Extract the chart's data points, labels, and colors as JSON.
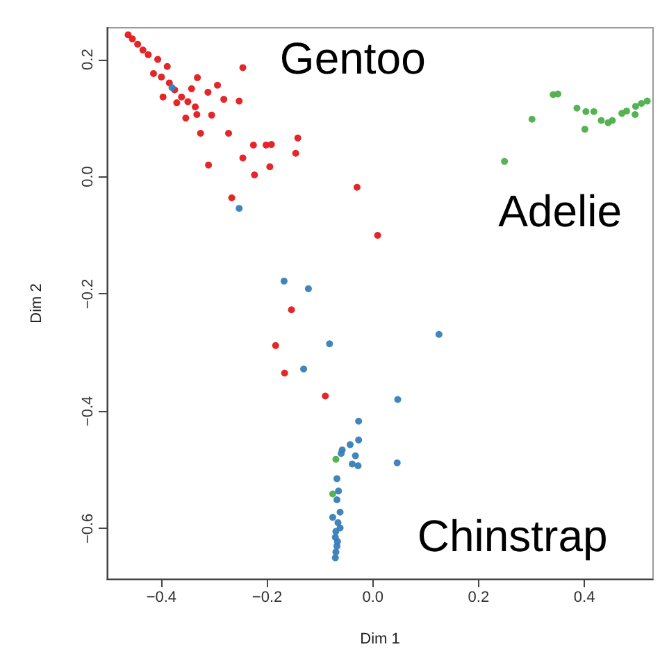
{
  "chart_data": {
    "type": "scatter",
    "xlabel": "Dim 1",
    "ylabel": "Dim 2",
    "xlim": [
      -0.503,
      0.53
    ],
    "ylim": [
      -0.686,
      0.254
    ],
    "xticks": [
      {
        "value": -0.4,
        "label": "−0.4"
      },
      {
        "value": -0.2,
        "label": "−0.2"
      },
      {
        "value": 0,
        "label": "0.0"
      },
      {
        "value": 0.2,
        "label": "0.2"
      },
      {
        "value": 0.4,
        "label": "0.4"
      }
    ],
    "yticks": [
      {
        "value": -0.6,
        "label": "−0.6"
      },
      {
        "value": -0.4,
        "label": "−0.4"
      },
      {
        "value": -0.2,
        "label": "−0.2"
      },
      {
        "value": 0,
        "label": "0.0"
      },
      {
        "value": 0.2,
        "label": "0.2"
      }
    ],
    "grid": false,
    "legend": false,
    "marker": "circle",
    "series": [
      {
        "name": "Gentoo",
        "color": "#e41a1c",
        "x": [
          -0.463,
          -0.455,
          -0.445,
          -0.435,
          -0.425,
          -0.407,
          -0.389,
          -0.415,
          -0.4,
          -0.385,
          -0.375,
          -0.362,
          -0.35,
          -0.336,
          -0.246,
          -0.332,
          -0.294,
          -0.343,
          -0.312,
          -0.397,
          -0.282,
          -0.253,
          -0.371,
          -0.333,
          -0.305,
          -0.354,
          -0.326,
          -0.273,
          -0.142,
          -0.226,
          -0.202,
          -0.192,
          -0.146,
          -0.246,
          -0.311,
          -0.195,
          -0.224,
          -0.267,
          -0.03,
          0.009,
          -0.154,
          -0.184,
          -0.167,
          -0.09
        ],
        "values": [
          0.242,
          0.235,
          0.226,
          0.216,
          0.208,
          0.2,
          0.188,
          0.176,
          0.17,
          0.16,
          0.148,
          0.136,
          0.128,
          0.119,
          0.186,
          0.169,
          0.156,
          0.15,
          0.144,
          0.136,
          0.132,
          0.129,
          0.126,
          0.106,
          0.105,
          0.1,
          0.074,
          0.074,
          0.066,
          0.054,
          0.054,
          0.055,
          0.04,
          0.032,
          0.02,
          0.017,
          0.003,
          -0.036,
          -0.018,
          -0.1,
          -0.227,
          -0.288,
          -0.335,
          -0.374
        ]
      },
      {
        "name": "Adelie",
        "color": "#4daf4a",
        "x": [
          0.249,
          0.301,
          0.341,
          0.35,
          0.386,
          0.403,
          0.418,
          0.401,
          0.432,
          0.445,
          0.453,
          0.471,
          0.48,
          0.496,
          0.497,
          0.508,
          0.519,
          -0.07,
          -0.076
        ],
        "values": [
          0.026,
          0.098,
          0.14,
          0.141,
          0.117,
          0.111,
          0.111,
          0.081,
          0.096,
          0.092,
          0.096,
          0.108,
          0.112,
          0.106,
          0.12,
          0.125,
          0.129,
          -0.482,
          -0.541
        ]
      },
      {
        "name": "Chinstrap",
        "color": "#377eb8",
        "x": [
          -0.38,
          -0.253,
          -0.168,
          -0.122,
          -0.082,
          0.125,
          -0.131,
          0.047,
          -0.027,
          -0.027,
          -0.043,
          -0.058,
          -0.06,
          -0.033,
          -0.039,
          -0.028,
          0.046,
          -0.068,
          -0.065,
          -0.068,
          -0.062,
          -0.076,
          -0.066,
          -0.062,
          -0.07,
          -0.071,
          -0.067,
          -0.068,
          -0.07,
          -0.071
        ],
        "values": [
          0.152,
          -0.054,
          -0.178,
          -0.191,
          -0.285,
          -0.269,
          -0.328,
          -0.38,
          -0.417,
          -0.449,
          -0.457,
          -0.466,
          -0.472,
          -0.476,
          -0.49,
          -0.493,
          -0.488,
          -0.515,
          -0.536,
          -0.551,
          -0.572,
          -0.581,
          -0.59,
          -0.599,
          -0.605,
          -0.615,
          -0.622,
          -0.63,
          -0.64,
          -0.65
        ]
      }
    ]
  }
}
